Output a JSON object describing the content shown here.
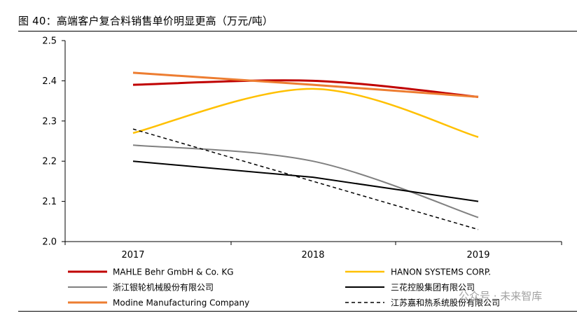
{
  "figure": {
    "title": "图 40：高端客户复合料销售单价明显更高（万元/吨）",
    "watermark": "公众号 · 未来智库"
  },
  "chart_data": {
    "type": "line",
    "title": "图 40：高端客户复合料销售单价明显更高（万元/吨）",
    "xlabel": "",
    "ylabel": "万元/吨",
    "categories": [
      "2017",
      "2018",
      "2019"
    ],
    "ylim": [
      2.0,
      2.5
    ],
    "yticks": [
      "2.0",
      "2.1",
      "2.2",
      "2.3",
      "2.4",
      "2.5"
    ],
    "grid": false,
    "legend_position": "bottom",
    "series": [
      {
        "name": "MAHLE Behr GmbH & Co. KG",
        "values": [
          2.39,
          2.4,
          2.36
        ],
        "color": "#C00000",
        "dash": "solid",
        "smooth": true
      },
      {
        "name": "HANON SYSTEMS CORP.",
        "values": [
          2.27,
          2.38,
          2.26
        ],
        "color": "#FFC000",
        "dash": "solid",
        "smooth": true
      },
      {
        "name": "浙江银轮机械股份有限公司",
        "values": [
          2.24,
          2.2,
          2.06
        ],
        "color": "#808080",
        "dash": "solid",
        "smooth": true
      },
      {
        "name": "三花控股集团有限公司",
        "values": [
          2.2,
          2.16,
          2.1
        ],
        "color": "#000000",
        "dash": "solid",
        "smooth": false
      },
      {
        "name": "Modine Manufacturing Company",
        "values": [
          2.42,
          2.39,
          2.36
        ],
        "color": "#ED7D31",
        "dash": "solid",
        "smooth": true
      },
      {
        "name": "江苏嘉和热系统股份有限公司",
        "values": [
          2.28,
          2.15,
          2.03
        ],
        "color": "#000000",
        "dash": "dashed",
        "smooth": false
      }
    ]
  }
}
